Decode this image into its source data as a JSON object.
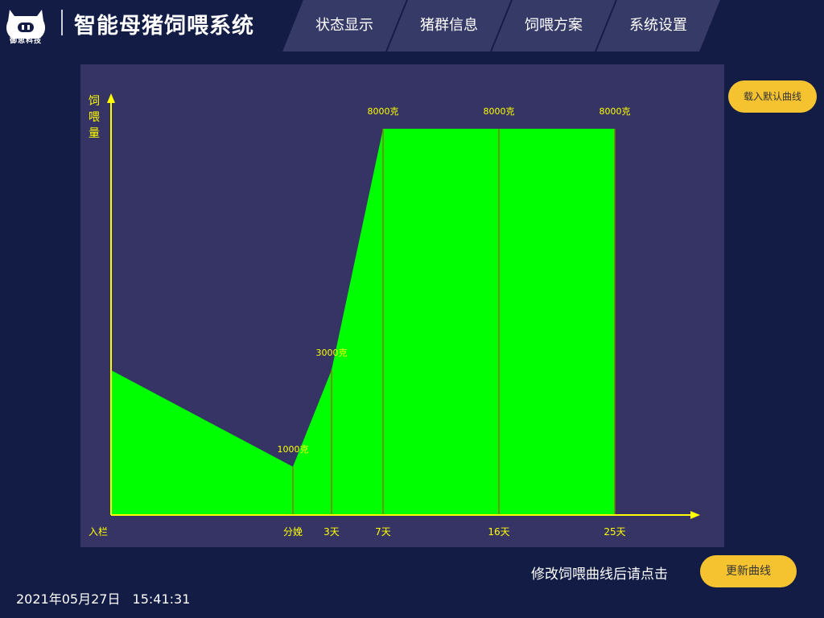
{
  "header": {
    "logo_text": "御思科技",
    "app_title": "智能母猪饲喂系统",
    "tabs": [
      {
        "label": "状态显示"
      },
      {
        "label": "猪群信息"
      },
      {
        "label": "饲喂方案"
      },
      {
        "label": "系统设置"
      }
    ]
  },
  "actions": {
    "load_default_label": "载入默认曲线",
    "update_label": "更新曲线",
    "update_hint": "修改饲喂曲线后请点击"
  },
  "status": {
    "date": "2021年05月27日",
    "time": "15:41:31"
  },
  "colors": {
    "background": "#131c45",
    "panel": "#353465",
    "accent": "#f5c330",
    "fill": "#00ff00",
    "axis": "#ffff00"
  },
  "chart_data": {
    "type": "area",
    "ylabel": "饲喂量",
    "xlabel": "",
    "categories": [
      "入栏",
      "分娩",
      "3天",
      "7天",
      "16天",
      "25天"
    ],
    "values": [
      3000,
      1000,
      3000,
      8000,
      8000,
      8000
    ],
    "value_labels": [
      "",
      "1000克",
      "3000克",
      "8000克",
      "8000克",
      "8000克"
    ],
    "ylim": [
      0,
      8000
    ],
    "grid": false,
    "legend": "none"
  }
}
